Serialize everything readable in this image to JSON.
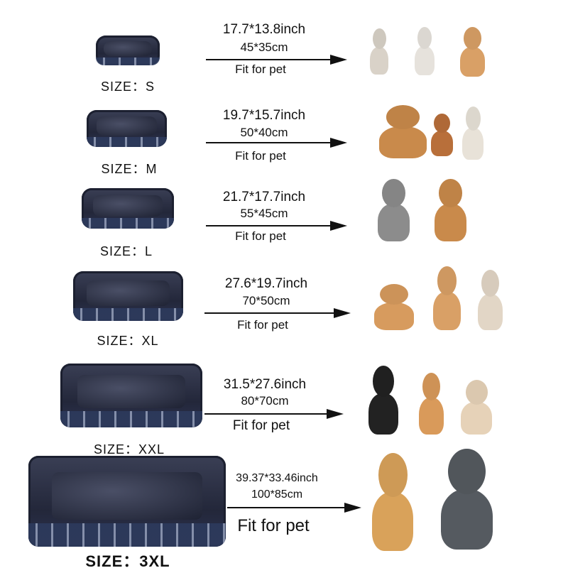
{
  "rows": [
    {
      "size_label": "SIZE：S",
      "inch": "17.7*13.8inch",
      "cm": "45*35cm",
      "fit": "Fit for pet",
      "pets": [
        "#d9d2c8",
        "#e6e2dc",
        "#d9a066"
      ]
    },
    {
      "size_label": "SIZE：M",
      "inch": "19.7*15.7inch",
      "cm": "50*40cm",
      "fit": "Fit for pet",
      "pets": [
        "#c98a4b",
        "#b86f3a",
        "#e8e2d8"
      ]
    },
    {
      "size_label": "SIZE：L",
      "inch": "21.7*17.7inch",
      "cm": "55*45cm",
      "fit": "Fit for pet",
      "pets": [
        "#8c8c8c",
        "#c98a4b"
      ]
    },
    {
      "size_label": "SIZE：XL",
      "inch": "27.6*19.7inch",
      "cm": "70*50cm",
      "fit": "Fit for pet",
      "pets": [
        "#d79b5e",
        "#d9a066",
        "#e2d6c6"
      ]
    },
    {
      "size_label": "SIZE：XXL",
      "inch": "31.5*27.6inch",
      "cm": "80*70cm",
      "fit": "Fit for pet",
      "pets": [
        "#222222",
        "#d99a5a",
        "#e6d2b8"
      ]
    },
    {
      "size_label": "SIZE：3XL",
      "inch": "39.37*33.46inch",
      "cm": "100*85cm",
      "fit": "Fit for pet",
      "pets": [
        "#d9a25a",
        "#555a60"
      ]
    }
  ]
}
